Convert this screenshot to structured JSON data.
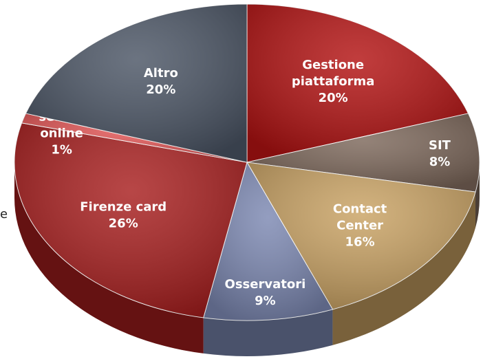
{
  "chart_data": {
    "type": "pie",
    "categories": [
      "Gestione\npiattaforma",
      "SIT",
      "Contact\nCenter",
      "Osservatori",
      "Firenze card",
      "Sviluppo\nservizi\nonline",
      "Altro"
    ],
    "values": [
      20,
      8,
      16,
      9,
      26,
      1,
      20
    ],
    "value_labels": [
      "20%",
      "8%",
      "16%",
      "9%",
      "26%",
      "1%",
      "20%"
    ],
    "colors": [
      "#b31212",
      "#7c675a",
      "#c9a263",
      "#7c88b2",
      "#a81e1e",
      "#e35555",
      "#4b5565"
    ]
  },
  "clipped_text": "e"
}
